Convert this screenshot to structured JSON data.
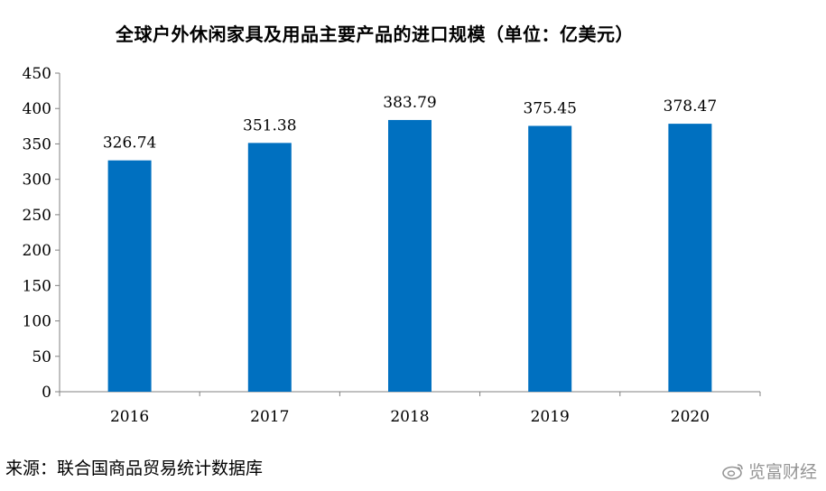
{
  "chart_data": {
    "type": "bar",
    "title": "全球户外休闲家具及用品主要产品的进口规模（单位：亿美元）",
    "categories": [
      "2016",
      "2017",
      "2018",
      "2019",
      "2020"
    ],
    "values": [
      326.74,
      351.38,
      383.79,
      375.45,
      378.47
    ],
    "value_labels": [
      "326.74",
      "351.38",
      "383.79",
      "375.45",
      "378.47"
    ],
    "ylim": [
      0,
      450
    ],
    "yticks": [
      "0",
      "50",
      "100",
      "150",
      "200",
      "250",
      "300",
      "350",
      "400",
      "450"
    ],
    "xlabel": "",
    "ylabel": "",
    "grid": false,
    "bar_color": "#0070C0"
  },
  "source": "来源：联合国商品贸易统计数据库",
  "watermark": "览富财经"
}
